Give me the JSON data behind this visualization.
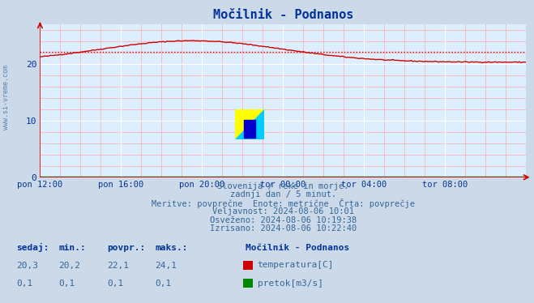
{
  "title": "Močilnik - Podnanos",
  "bg_color": "#ccd9e8",
  "plot_bg_color": "#ddeeff",
  "grid_color_major": "#ffffff",
  "grid_color_minor": "#ffaaaa",
  "temp_color": "#cc0000",
  "flow_color": "#008800",
  "avg_line_color": "#cc0000",
  "avg_value": 22.1,
  "xlabel_color": "#003399",
  "title_color": "#003399",
  "info_text_color": "#336699",
  "watermark": "www.si-vreme.com",
  "subtitle1": "Slovenija / reke in morje.",
  "subtitle2": "zadnji dan / 5 minut.",
  "subtitle3": "Meritve: povprečne  Enote: metrične  Črta: povprečje",
  "subtitle4": "Veljavnost: 2024-08-06 10:01",
  "subtitle5": "Osveženo: 2024-08-06 10:19:38",
  "subtitle6": "Izrisano: 2024-08-06 10:22:40",
  "xtick_labels": [
    "pon 12:00",
    "pon 16:00",
    "pon 20:00",
    "tor 00:00",
    "tor 04:00",
    "tor 08:00"
  ],
  "xtick_positions": [
    0,
    16,
    32,
    48,
    64,
    80
  ],
  "ytick_labels": [
    "0",
    "10",
    "20"
  ],
  "ytick_positions": [
    0,
    10,
    20
  ],
  "ymax": 27,
  "xmax": 96,
  "table_headers": [
    "sedaj:",
    "min.:",
    "povpr.:",
    "maks.:"
  ],
  "table_temp": [
    "20,3",
    "20,2",
    "22,1",
    "24,1"
  ],
  "table_flow": [
    "0,1",
    "0,1",
    "0,1",
    "0,1"
  ],
  "legend_title": "Močilnik - Podnanos",
  "legend_temp": "temperatura[C]",
  "legend_flow": "pretok[m3/s]"
}
